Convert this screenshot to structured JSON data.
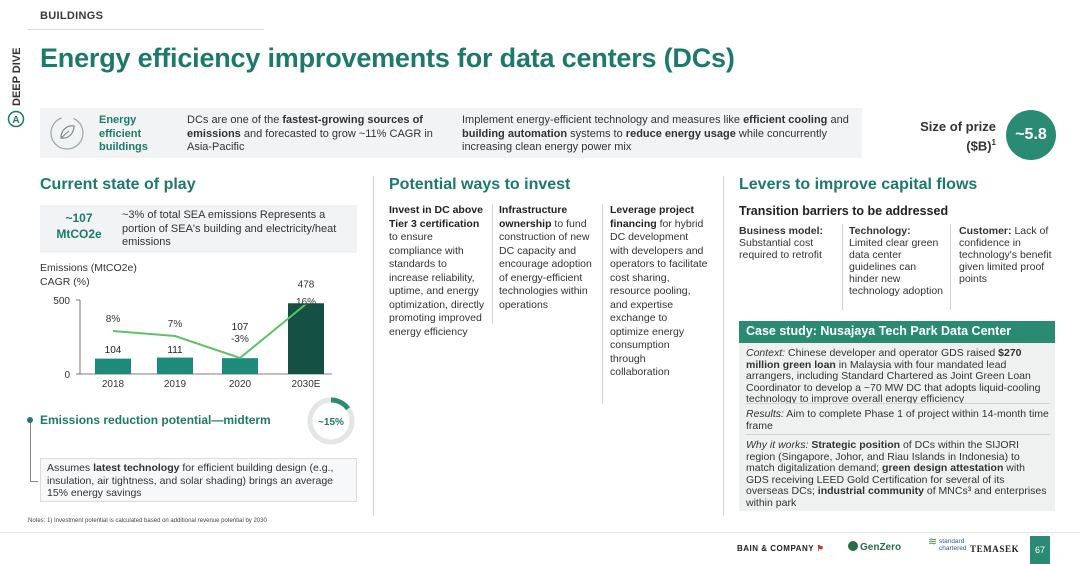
{
  "section_tag": "BUILDINGS",
  "deep_dive": {
    "text": "DEEP DIVE",
    "letter": "A"
  },
  "title": "Energy efficiency improvements for data centers (DCs)",
  "banner": {
    "icon": "leaf-in-circle-icon",
    "label": "Energy efficient buildings",
    "text1_parts": [
      "DCs are one of the ",
      "fastest-growing sources of emissions",
      " and forecasted to grow ~11% CAGR in Asia-Pacific"
    ],
    "text2_parts": [
      "Implement energy-efficient technology and measures like ",
      "efficient cooling",
      " and ",
      "building automation",
      " systems to ",
      "reduce energy usage",
      " while concurrently increasing clean energy power mix"
    ]
  },
  "prize": {
    "label": "Size of prize ($B)",
    "superscript": "1",
    "value": "~5.8"
  },
  "current_state": {
    "heading": "Current state of play",
    "stat_value": "~107 MtCO2e",
    "stat_text": "~3% of total SEA emissions Represents a portion of SEA's building and electricity/heat emissions",
    "chart_label_1": "Emissions (MtCO2e)",
    "chart_label_2": "CAGR (%)"
  },
  "chart_data": {
    "type": "bar",
    "categories": [
      "2018",
      "2019",
      "2020",
      "2030E"
    ],
    "values": [
      104,
      111,
      107,
      478
    ],
    "ylim": [
      0,
      500
    ],
    "ytick_labels": [
      "0",
      "500"
    ],
    "cagr_line": {
      "x": [
        "2018",
        "2019",
        "2020",
        "2030E"
      ],
      "values": [
        8,
        7,
        -3,
        16
      ],
      "labels": [
        "8%",
        "7%",
        "-3%",
        "16%"
      ]
    },
    "colors": {
      "bar": "#1d8a7a",
      "bar_last": "#155045",
      "line": "#5cc36a"
    }
  },
  "emissions": {
    "title": "Emissions reduction potential—midterm",
    "percent": "~15%",
    "percent_value": 15,
    "assume_parts": [
      "Assumes ",
      "latest technology",
      " for efficient building design (e.g., insulation, air tightness, and solar shading) brings an average 15% energy savings"
    ]
  },
  "invest": {
    "heading": "Potential ways to invest",
    "col1": [
      "Invest in DC above Tier 3 certification",
      " to ensure compliance with standards to increase reliability, uptime, and energy optimization, directly promoting improved energy efficiency"
    ],
    "col2": [
      "Infrastructure ownership",
      " to fund construction of new DC capacity and encourage adoption of energy-efficient technologies within operations"
    ],
    "col3": [
      "Leverage project financing",
      " for hybrid DC development with developers and operators to facilitate cost sharing, resource pooling, and expertise exchange to optimize energy consumption through collaboration"
    ]
  },
  "levers": {
    "heading": "Levers to improve capital flows",
    "subheading": "Transition barriers to be addressed",
    "business": {
      "title": "Business model:",
      "text": "Substantial cost required to retrofit"
    },
    "technology": {
      "title": "Technology:",
      "text": "Limited clear green data center guidelines can hinder new technology adoption"
    },
    "customer": {
      "title": "Customer:",
      "text": "Lack of confidence in technology's benefit given limited proof points"
    }
  },
  "case_study": {
    "header": "Case study: Nusajaya Tech Park Data Center",
    "context_parts": [
      "Context:",
      " Chinese developer and operator GDS raised ",
      "$270 million green loan",
      " in Malaysia with four mandated lead arrangers, including Standard Chartered as Joint Green Loan Coordinator to develop a ~70 MW DC that adopts liquid-cooling technology to improve overall energy efficiency"
    ],
    "results_parts": [
      "Results:",
      " Aim to complete Phase 1 of project within 14-month time frame"
    ],
    "why_parts": [
      "Why it works:",
      " ",
      "Strategic position",
      " of DCs within the SIJORI region (Singapore, Johor, and Riau Islands in Indonesia) to match digitalization demand; ",
      "green design attestation",
      " with GDS receiving LEED Gold Certification for several of its overseas DCs; ",
      "industrial community",
      " of MNCs³ and enterprises within park"
    ]
  },
  "notes": "Notes: 1) Investment potential is calculated based on additional revenue potential by 2030",
  "footer": {
    "bain": "BAIN & COMPANY",
    "genzero": "GenZero",
    "sc": "standard chartered",
    "temasek": "TEMASEK",
    "page": "67"
  },
  "colors": {
    "accent": "#1d7a6a",
    "accent_fill": "#2a8a73"
  }
}
